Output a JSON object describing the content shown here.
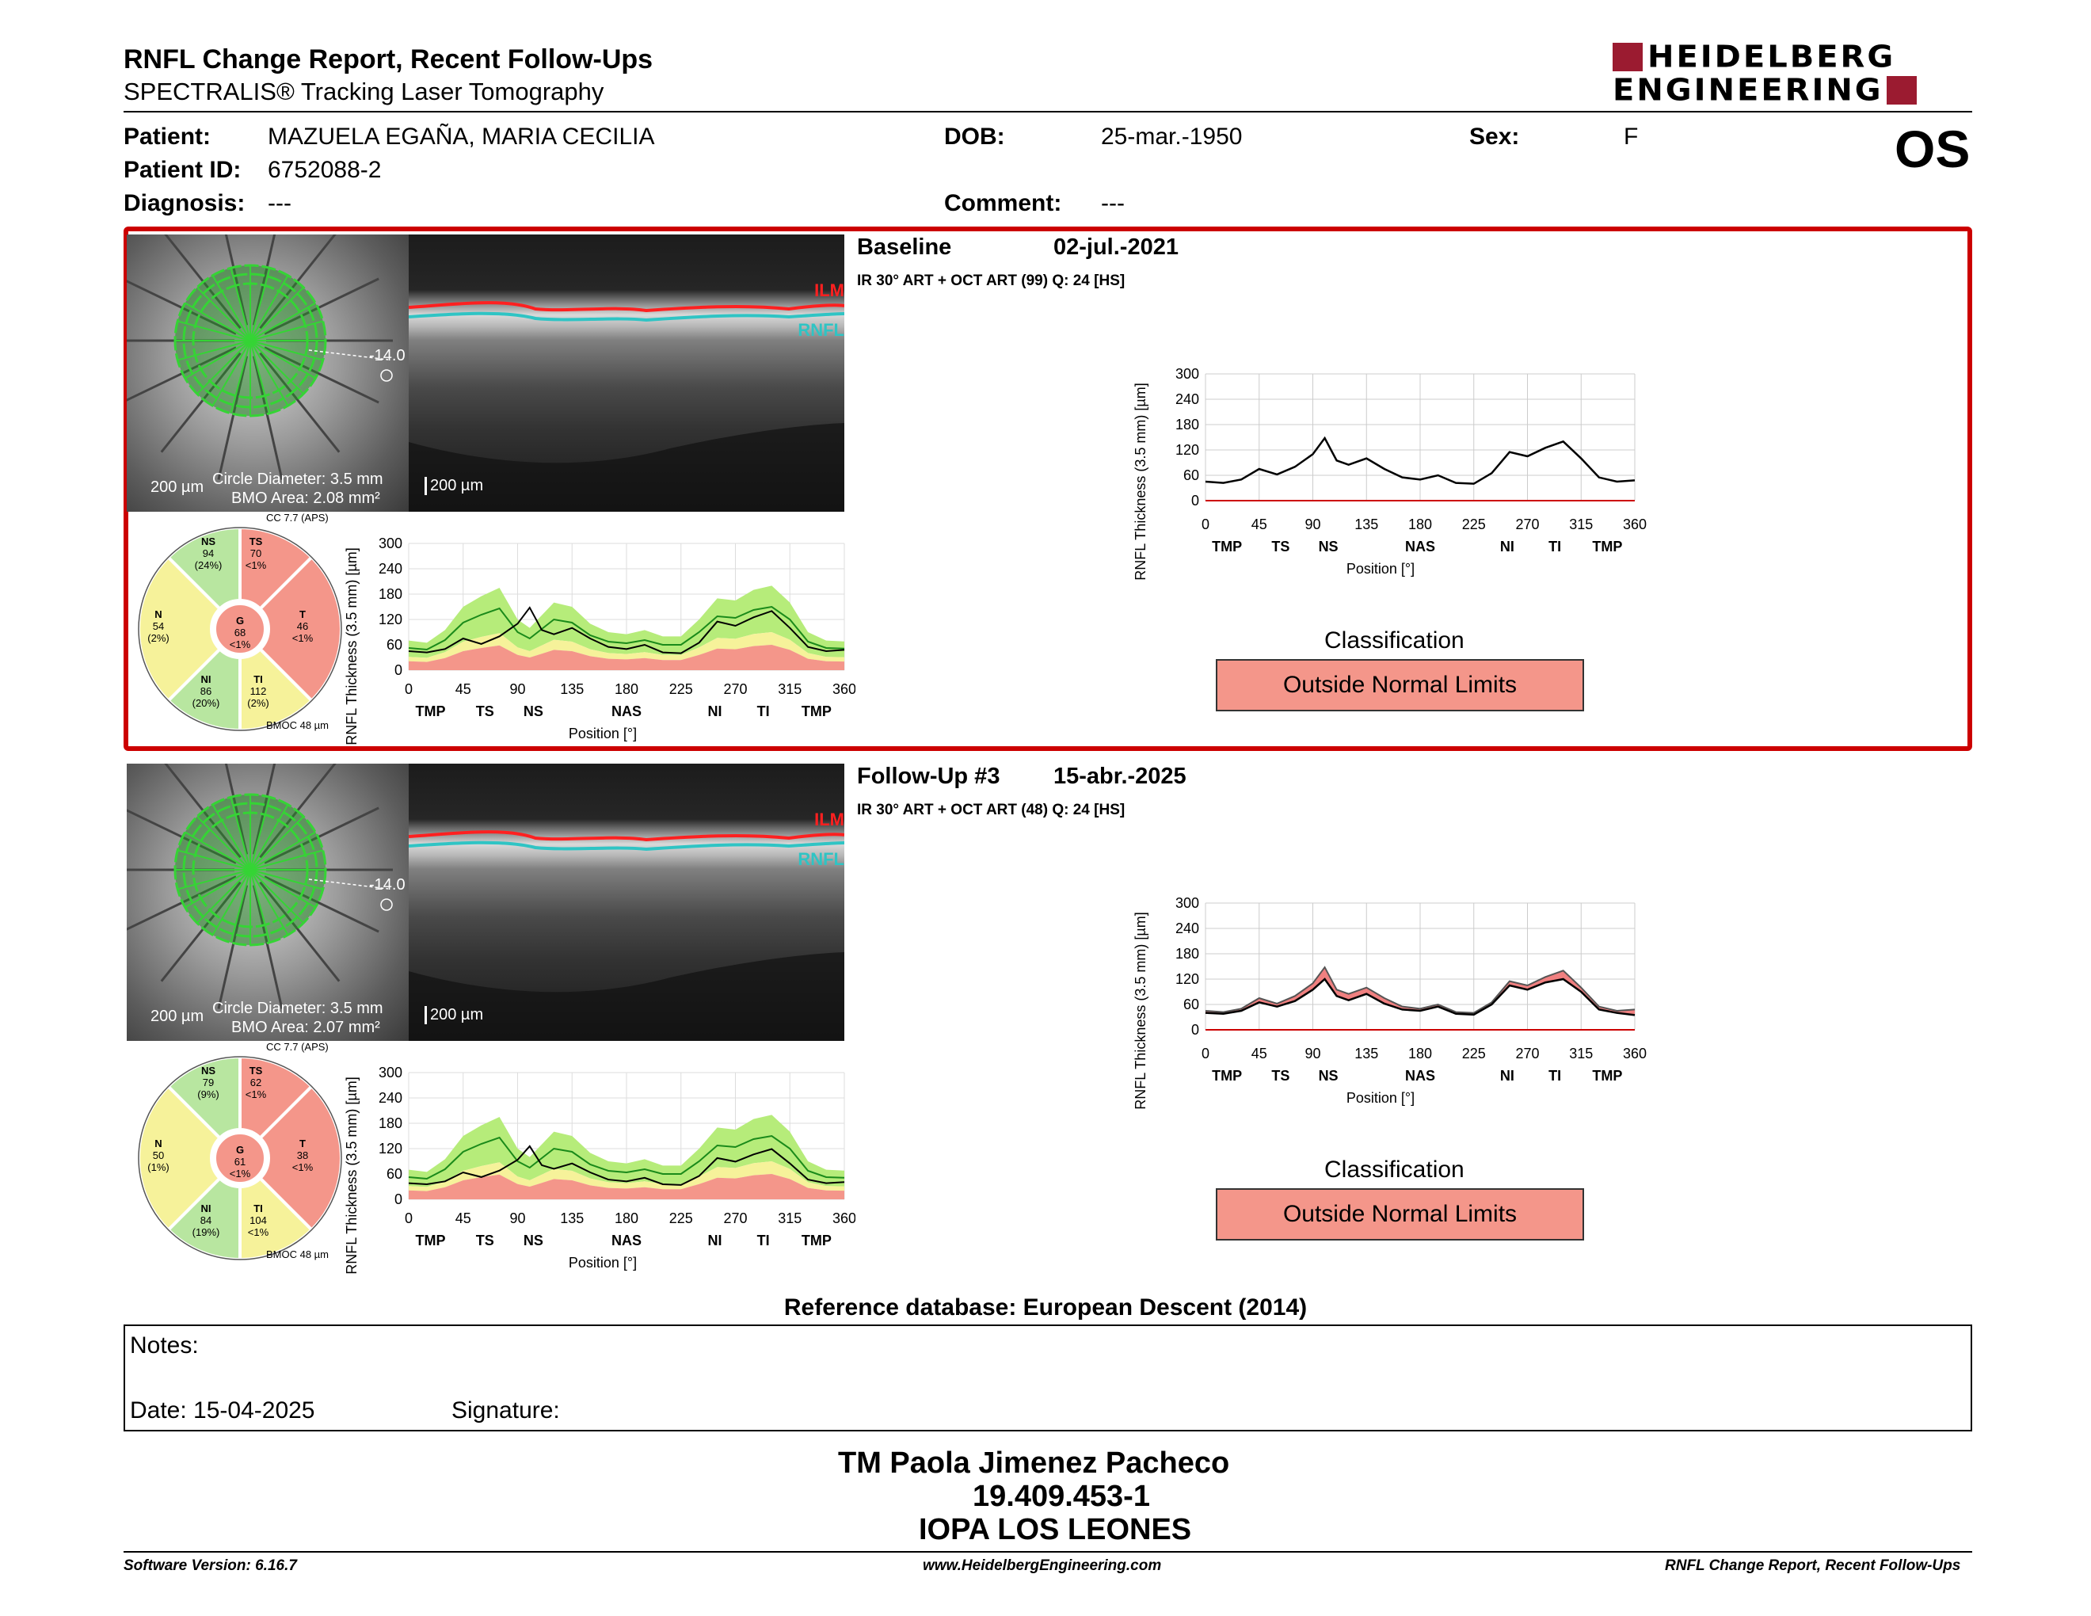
{
  "report": {
    "title": "RNFL Change Report, Recent Follow-Ups",
    "subtitle": "SPECTRALIS® Tracking Laser Tomography",
    "logo_line1": "HEIDELBERG",
    "logo_line2": "ENGINEERING",
    "eye": "OS",
    "colors": {
      "logo": "#9b1b30",
      "frame": "#cc0000",
      "onl": "#f4968a"
    }
  },
  "patient": {
    "name_label": "Patient:",
    "name": "MAZUELA EGAÑA, MARIA CECILIA",
    "id_label": "Patient ID:",
    "id": "6752088-2",
    "diagnosis_label": "Diagnosis:",
    "diagnosis": "---",
    "dob_label": "DOB:",
    "dob": "25-mar.-1950",
    "sex_label": "Sex:",
    "sex": "F",
    "comment_label": "Comment:",
    "comment": "---"
  },
  "exams": [
    {
      "title": "Baseline",
      "date": "02-jul.-2021",
      "scan_info": "IR 30° ART + OCT ART (99) Q: 24 [HS]",
      "scale_fundus": "200 µm",
      "circle_diameter": "Circle Diameter: 3.5 mm",
      "bmo_area": "BMO Area: 2.08 mm²",
      "scale_oct": "200 µm",
      "angle": "-14.0",
      "ilm": "ILM",
      "rnfl": "RNFL",
      "cc": "CC 7.7 (APS)",
      "bmoc": "BMOC 48 µm",
      "sectors": {
        "NS": {
          "label": "NS",
          "value": "94",
          "pct": "(24%)"
        },
        "TS": {
          "label": "TS",
          "value": "70",
          "pct": "<1%"
        },
        "N": {
          "label": "N",
          "value": "54",
          "pct": "(2%)"
        },
        "G": {
          "label": "G",
          "value": "68",
          "pct": "<1%"
        },
        "T": {
          "label": "T",
          "value": "46",
          "pct": "<1%"
        },
        "NI": {
          "label": "NI",
          "value": "86",
          "pct": "(20%)"
        },
        "TI": {
          "label": "TI",
          "value": "112",
          "pct": "(2%)"
        }
      },
      "classification_label": "Classification",
      "classification": "Outside Normal Limits"
    },
    {
      "title": "Follow-Up #3",
      "date": "15-abr.-2025",
      "scan_info": "IR 30° ART + OCT ART (48) Q: 24 [HS]",
      "scale_fundus": "200 µm",
      "circle_diameter": "Circle Diameter: 3.5 mm",
      "bmo_area": "BMO Area: 2.07 mm²",
      "scale_oct": "200 µm",
      "angle": "-14.0",
      "ilm": "ILM",
      "rnfl": "RNFL",
      "cc": "CC 7.7 (APS)",
      "bmoc": "BMOC 48 µm",
      "sectors": {
        "NS": {
          "label": "NS",
          "value": "79",
          "pct": "(9%)"
        },
        "TS": {
          "label": "TS",
          "value": "62",
          "pct": "<1%"
        },
        "N": {
          "label": "N",
          "value": "50",
          "pct": "(1%)"
        },
        "G": {
          "label": "G",
          "value": "61",
          "pct": "<1%"
        },
        "T": {
          "label": "T",
          "value": "38",
          "pct": "<1%"
        },
        "NI": {
          "label": "NI",
          "value": "84",
          "pct": "(19%)"
        },
        "TI": {
          "label": "TI",
          "value": "104",
          "pct": "<1%"
        }
      },
      "classification_label": "Classification",
      "classification": "Outside Normal Limits"
    }
  ],
  "chart_data": [
    {
      "type": "line",
      "title": "",
      "xlabel": "Position [°]",
      "ylabel": "RNFL Thickness (3.5 mm) [µm]",
      "xlim": [
        0,
        360
      ],
      "ylim": [
        0,
        300
      ],
      "xticks": [
        0,
        45,
        90,
        135,
        180,
        225,
        270,
        315,
        360
      ],
      "yticks": [
        0,
        60,
        120,
        180,
        240,
        300
      ],
      "sector_labels": [
        "TMP",
        "TS",
        "NS",
        "NAS",
        "NI",
        "TI",
        "TMP"
      ],
      "sector_positions": [
        18,
        63,
        103,
        180,
        253,
        293,
        337
      ],
      "x": [
        0,
        15,
        30,
        45,
        60,
        75,
        90,
        100,
        110,
        120,
        135,
        150,
        165,
        180,
        195,
        210,
        225,
        240,
        255,
        270,
        285,
        300,
        315,
        330,
        345,
        360
      ],
      "series": [
        {
          "values": [
            45,
            42,
            50,
            75,
            62,
            80,
            110,
            148,
            95,
            85,
            100,
            75,
            55,
            50,
            60,
            42,
            40,
            65,
            115,
            105,
            125,
            140,
            100,
            55,
            45,
            48
          ]
        }
      ]
    },
    {
      "type": "line",
      "title": "",
      "xlabel": "Position [°]",
      "ylabel": "RNFL Thickness (3.5 mm) [µm]",
      "xlim": [
        0,
        360
      ],
      "ylim": [
        0,
        300
      ],
      "xticks": [
        0,
        45,
        90,
        135,
        180,
        225,
        270,
        315,
        360
      ],
      "yticks": [
        0,
        60,
        120,
        180,
        240,
        300
      ],
      "sector_labels": [
        "TMP",
        "TS",
        "NS",
        "NAS",
        "NI",
        "TI",
        "TMP"
      ],
      "sector_positions": [
        18,
        63,
        103,
        180,
        253,
        293,
        337
      ],
      "x": [
        0,
        15,
        30,
        45,
        60,
        75,
        90,
        100,
        110,
        120,
        135,
        150,
        165,
        180,
        195,
        210,
        225,
        240,
        255,
        270,
        285,
        300,
        315,
        330,
        345,
        360
      ],
      "series": [
        {
          "values": [
            40,
            38,
            45,
            65,
            55,
            68,
            95,
            120,
            80,
            70,
            85,
            62,
            48,
            45,
            55,
            38,
            36,
            60,
            105,
            95,
            112,
            120,
            90,
            48,
            40,
            35
          ]
        },
        {
          "values": [
            45,
            42,
            50,
            75,
            62,
            80,
            110,
            148,
            95,
            85,
            100,
            75,
            55,
            50,
            60,
            42,
            40,
            65,
            115,
            105,
            125,
            140,
            100,
            55,
            45,
            48
          ]
        }
      ]
    }
  ],
  "notes": {
    "notes_label": "Notes:",
    "date_label": "Date: 15-04-2025",
    "signature_label": "Signature:"
  },
  "reference_db": "Reference database: European Descent (2014)",
  "operator": {
    "name": "TM Paola Jimenez Pacheco",
    "id": "19.409.453-1",
    "place": "IOPA LOS LEONES"
  },
  "footer": {
    "software": "Software Version: 6.16.7",
    "website": "www.HeidelbergEngineering.com",
    "report_name": "RNFL Change Report, Recent Follow-Ups"
  }
}
